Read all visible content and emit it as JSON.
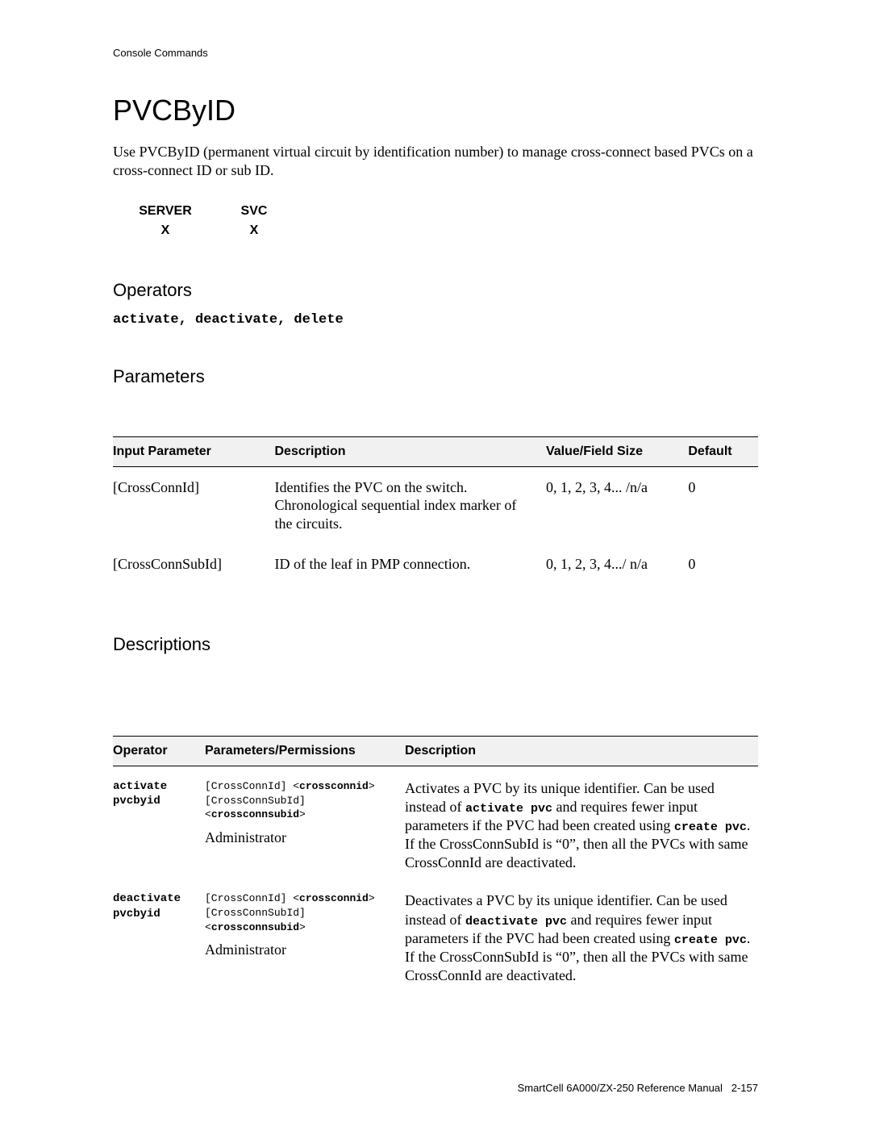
{
  "breadcrumb": "Console Commands",
  "title": "PVCByID",
  "intro": "Use PVCByID (permanent virtual circuit by identification number) to manage cross-connect based PVCs on a cross-connect ID or sub ID.",
  "server_svc": {
    "columns": [
      "SERVER",
      "SVC"
    ],
    "values": [
      "X",
      "X"
    ],
    "header_font_family": "Arial",
    "header_font_weight": "bold",
    "header_font_size_pt": 12
  },
  "operators": {
    "heading": "Operators",
    "list": "activate, deactivate, delete",
    "list_font_family": "Courier New",
    "list_font_weight": "bold"
  },
  "parameters": {
    "heading": "Parameters",
    "columns": [
      "Input Parameter",
      "Description",
      "Value/Field Size",
      "Default"
    ],
    "rows": [
      {
        "name": "[CrossConnId]",
        "desc": "Identifies the PVC on the switch. Chronological sequential index marker of the circuits.",
        "value": "0, 1, 2, 3, 4... /n/a",
        "default": "0"
      },
      {
        "name": "[CrossConnSubId]",
        "desc": "ID of the leaf in PMP connection.",
        "value": "0, 1, 2, 3, 4.../ n/a",
        "default": "0"
      }
    ],
    "header_bg": "#f1f1f1",
    "border_color": "#000000"
  },
  "descriptions": {
    "heading": "Descriptions",
    "columns": [
      "Operator",
      "Parameters/Permissions",
      "Description"
    ],
    "rows": [
      {
        "operator_lines": [
          "activate",
          "pvcbyid"
        ],
        "params_line1_plain": "[CrossConnId] <",
        "params_line1_bold": "crossconnid",
        "params_line1_suffix": ">",
        "params_line2_plain": "[CrossConnSubId]",
        "params_line3_prefix": "<",
        "params_line3_bold": "crossconnsubid",
        "params_line3_suffix": ">",
        "permission": "Administrator",
        "desc_pre1": "Activates a PVC by its unique identifier. Can be used instead of ",
        "desc_code1": "activate pvc",
        "desc_mid1": " and requires fewer input parameters if the PVC had been created using ",
        "desc_code2": "create pvc",
        "desc_post1": ". If the CrossConnSubId is “0”, then all the PVCs with same CrossConnId are deactivated."
      },
      {
        "operator_lines": [
          "deactivate",
          "pvcbyid"
        ],
        "params_line1_plain": "[CrossConnId] <",
        "params_line1_bold": "crossconnid",
        "params_line1_suffix": ">",
        "params_line2_plain": "[CrossConnSubId]",
        "params_line3_prefix": "<",
        "params_line3_bold": "crossconnsubid",
        "params_line3_suffix": ">",
        "permission": "Administrator",
        "desc_pre1": "Deactivates a PVC by its unique identifier. Can be used instead of ",
        "desc_code1": "deactivate pvc",
        "desc_mid1": " and requires fewer input parameters if the PVC had been created using ",
        "desc_code2": "create pvc",
        "desc_post1": ". If the CrossConnSubId is “0”, then all the PVCs with same CrossConnId are deactivated."
      }
    ]
  },
  "footer": "SmartCell 6A000/ZX-250 Reference Manual   2-157",
  "colors": {
    "page_bg": "#ffffff",
    "text": "#000000",
    "table_header_bg": "#f1f1f1",
    "rule": "#000000"
  },
  "fonts": {
    "body": "Times New Roman",
    "headings": "Arial",
    "mono": "Courier New"
  }
}
